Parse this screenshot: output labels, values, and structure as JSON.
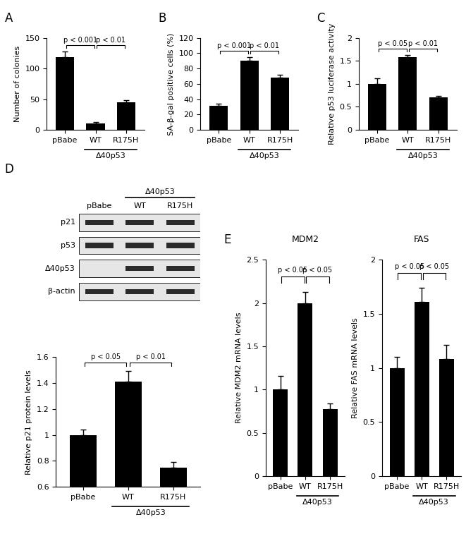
{
  "chart_data": [
    {
      "panel": "A",
      "type": "bar",
      "categories": [
        "pBabe",
        "WT",
        "R175H"
      ],
      "values": [
        119,
        10,
        45
      ],
      "errors": [
        9,
        3,
        3
      ],
      "color": "#000000",
      "ylabel": "Number of colonies",
      "ylim": [
        0,
        150
      ],
      "yticks": [
        0,
        50,
        100,
        150
      ],
      "annotations": [
        {
          "text": "p < 0.001",
          "between": [
            "pBabe",
            "WT"
          ]
        },
        {
          "text": "p < 0.01",
          "between": [
            "WT",
            "R175H"
          ]
        }
      ],
      "group_label": {
        "text": "Δ40p53",
        "categories": [
          "WT",
          "R175H"
        ]
      }
    },
    {
      "panel": "B",
      "type": "bar",
      "categories": [
        "pBabe",
        "WT",
        "R175H"
      ],
      "values": [
        31,
        90,
        68
      ],
      "errors": [
        3,
        5,
        4
      ],
      "color": "#000000",
      "ylabel": "SA-β-gal positive cells (%)",
      "ylim": [
        0,
        120
      ],
      "yticks": [
        0,
        20,
        40,
        60,
        80,
        100,
        120
      ],
      "annotations": [
        {
          "text": "p < 0.001",
          "between": [
            "pBabe",
            "WT"
          ]
        },
        {
          "text": "p < 0.01",
          "between": [
            "WT",
            "R175H"
          ]
        }
      ],
      "group_label": {
        "text": "Δ40p53",
        "categories": [
          "WT",
          "R175H"
        ]
      }
    },
    {
      "panel": "C",
      "type": "bar",
      "categories": [
        "pBabe",
        "WT",
        "R175H"
      ],
      "values": [
        1.0,
        1.58,
        0.71
      ],
      "errors": [
        0.12,
        0.05,
        0.02
      ],
      "color": "#000000",
      "ylabel": "Relative p53 luciferase activity",
      "ylim": [
        0,
        2
      ],
      "yticks": [
        0,
        0.5,
        1,
        1.5,
        2
      ],
      "annotations": [
        {
          "text": "p < 0.05",
          "between": [
            "pBabe",
            "WT"
          ]
        },
        {
          "text": "p < 0.01",
          "between": [
            "WT",
            "R175H"
          ]
        }
      ],
      "group_label": {
        "text": "Δ40p53",
        "categories": [
          "WT",
          "R175H"
        ]
      }
    },
    {
      "type": "bar",
      "categories": [
        "pBabe",
        "WT",
        "R175H"
      ],
      "values": [
        1.0,
        1.41,
        0.75
      ],
      "errors": [
        0.04,
        0.08,
        0.04
      ],
      "color": "#000000",
      "ylabel": "Relative p21 protein levels",
      "ylim": [
        0.6,
        1.6
      ],
      "yticks": [
        0.6,
        0.8,
        1,
        1.2,
        1.4,
        1.6
      ],
      "annotations": [
        {
          "text": "p < 0.05",
          "between": [
            "pBabe",
            "WT"
          ]
        },
        {
          "text": "p < 0.01",
          "between": [
            "WT",
            "R175H"
          ]
        }
      ],
      "group_label": {
        "text": "Δ40p53",
        "categories": [
          "WT",
          "R175H"
        ]
      }
    },
    {
      "panel": "E",
      "type": "bar",
      "title": "MDM2",
      "categories": [
        "pBabe",
        "WT",
        "R175H"
      ],
      "values": [
        1.0,
        2.0,
        0.77
      ],
      "errors": [
        0.16,
        0.13,
        0.07
      ],
      "color": "#000000",
      "ylabel": "Relative MDM2 mRNA levels",
      "ylim": [
        0,
        2.5
      ],
      "yticks": [
        0,
        0.5,
        1,
        1.5,
        2,
        2.5
      ],
      "annotations": [
        {
          "text": "p < 0.05",
          "between": [
            "pBabe",
            "WT"
          ]
        },
        {
          "text": "p < 0.05",
          "between": [
            "WT",
            "R175H"
          ]
        }
      ],
      "group_label": {
        "text": "Δ40p53",
        "categories": [
          "WT",
          "R175H"
        ]
      }
    },
    {
      "type": "bar",
      "title": "FAS",
      "categories": [
        "pBabe",
        "WT",
        "R175H"
      ],
      "values": [
        1.0,
        1.61,
        1.08
      ],
      "errors": [
        0.1,
        0.13,
        0.13
      ],
      "color": "#000000",
      "ylabel": "Relative FAS mRNA levels",
      "ylim": [
        0,
        2
      ],
      "yticks": [
        0,
        0.5,
        1,
        1.5,
        2
      ],
      "annotations": [
        {
          "text": "p < 0.05",
          "between": [
            "pBabe",
            "WT"
          ]
        },
        {
          "text": "p < 0.05",
          "between": [
            "WT",
            "R175H"
          ]
        }
      ],
      "group_label": {
        "text": "Δ40p53",
        "categories": [
          "WT",
          "R175H"
        ]
      }
    }
  ],
  "blot": {
    "panel": "D",
    "lanes": [
      "pBabe",
      "WT",
      "R175H"
    ],
    "rows": [
      "p21",
      "p53",
      "Δ40p53",
      "β-actin"
    ],
    "group_label": {
      "text": "Δ40p53",
      "categories": [
        "WT",
        "R175H"
      ]
    }
  }
}
